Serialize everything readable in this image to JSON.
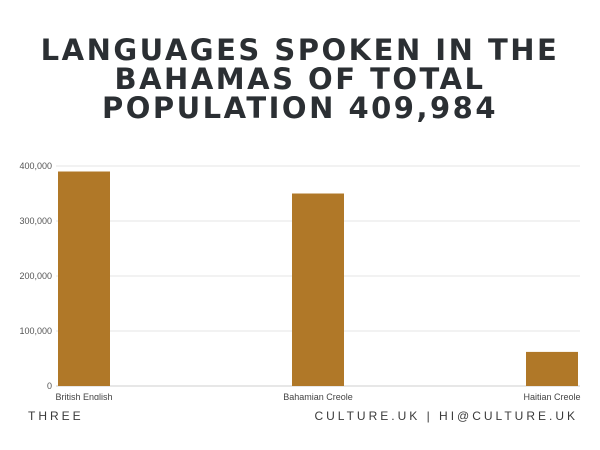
{
  "title": "LANGUAGES SPOKEN IN THE BAHAMAS OF TOTAL POPULATION 409,984",
  "chart_data": {
    "type": "bar",
    "categories": [
      "British English",
      "Bahamian Creole",
      "Haitian Creole"
    ],
    "values": [
      390000,
      350000,
      62000
    ],
    "ylim": [
      0,
      400000
    ],
    "yticks": [
      0,
      100000,
      200000,
      300000,
      400000
    ],
    "ytick_labels": [
      "0",
      "100,000",
      "200,000",
      "300,000",
      "400,000"
    ],
    "grid": true,
    "bar_color": "#b07828"
  },
  "footer": {
    "left": "THREE",
    "right": "CULTURE.UK | HI@CULTURE.UK"
  }
}
